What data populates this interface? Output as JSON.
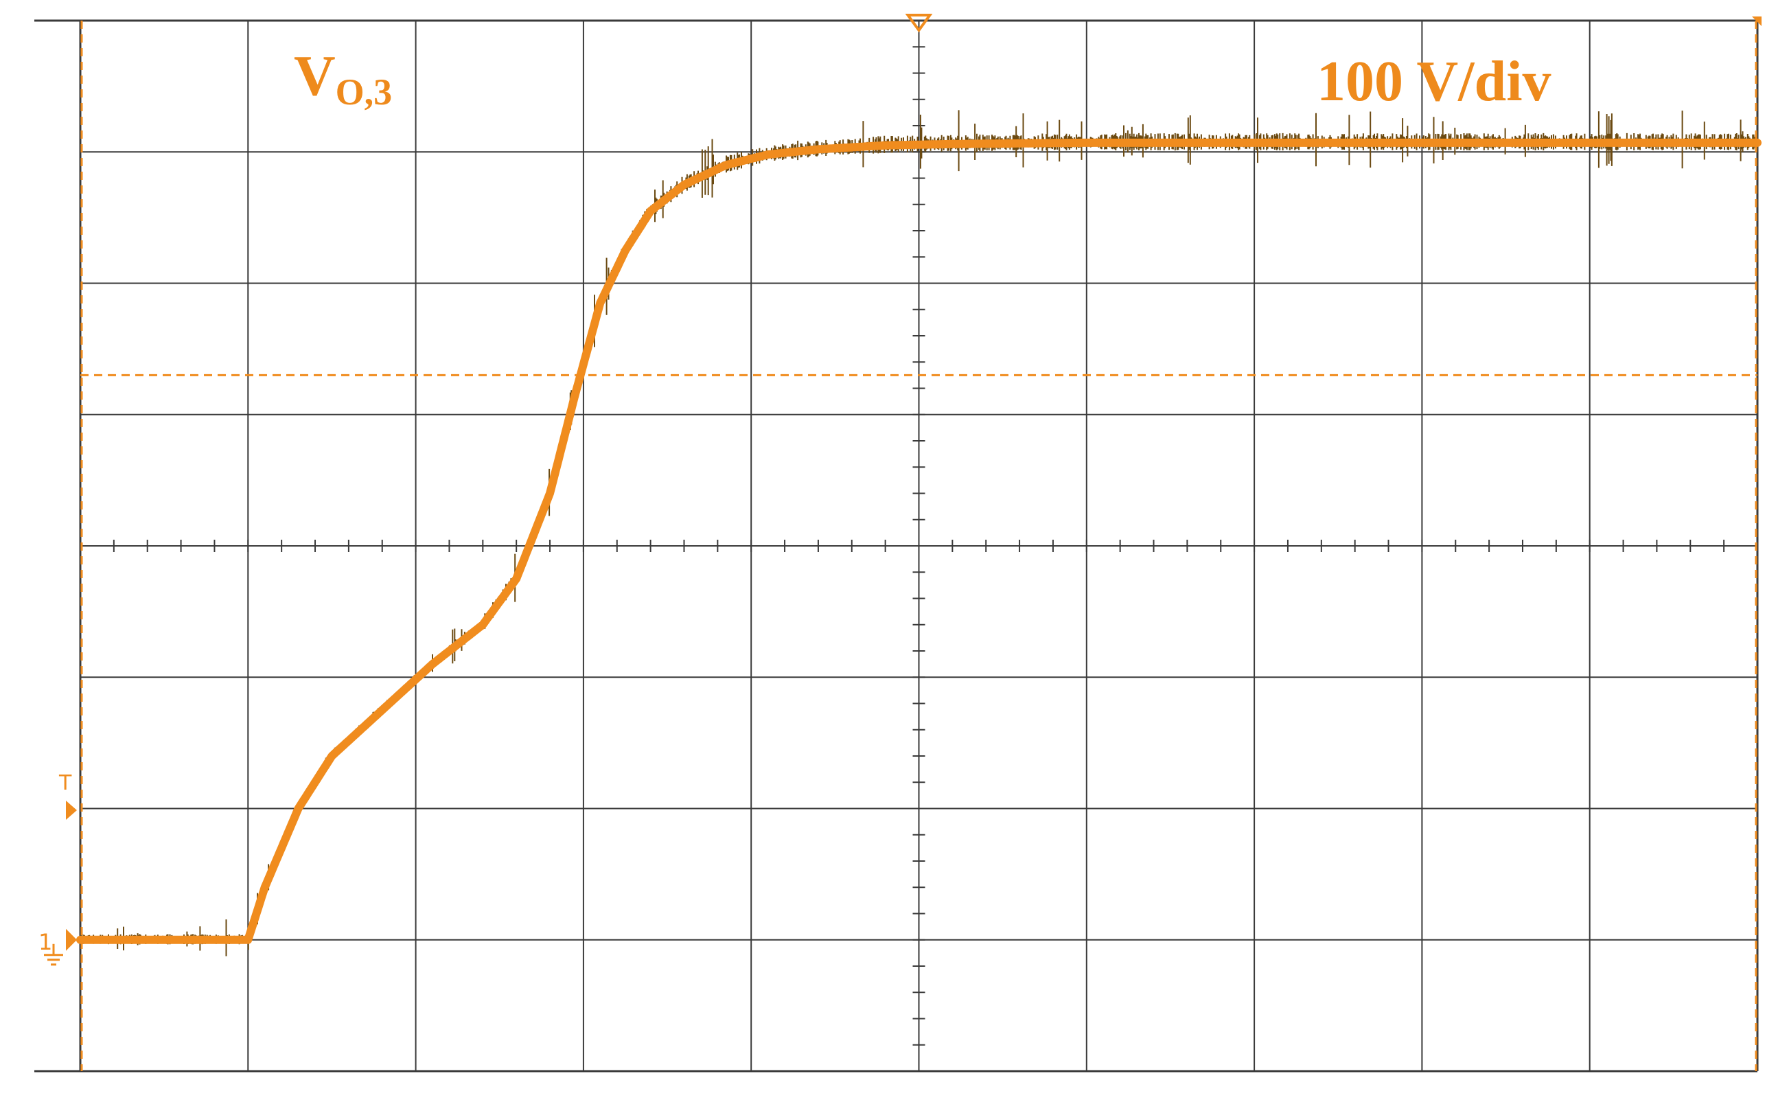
{
  "chart_data": {
    "type": "line",
    "title": "",
    "channel_label": {
      "main": "V",
      "sub": "O,3"
    },
    "scale_label": "100 V/div",
    "channel_marker": "1",
    "trigger_marker": "T",
    "grid": {
      "h_divisions": 10,
      "v_divisions": 8,
      "minor_ticks_per_division": 5,
      "visible": true
    },
    "xlabel": "",
    "ylabel": "",
    "xlim": [
      0,
      10
    ],
    "ylim": [
      -1,
      7
    ],
    "trigger_level_div": 4.3,
    "trigger_time_div": 5.0,
    "series": [
      {
        "color": "#F08C1E",
        "noise_color": "#6B4A12",
        "x": [
          0.0,
          1.0,
          1.1,
          1.3,
          1.5,
          1.8,
          2.1,
          2.4,
          2.6,
          2.8,
          2.95,
          3.1,
          3.25,
          3.4,
          3.6,
          3.85,
          4.1,
          4.4,
          4.8,
          5.2,
          6.0,
          7.0,
          8.0,
          9.0,
          10.0
        ],
        "y": [
          0.0,
          0.0,
          0.4,
          1.0,
          1.4,
          1.75,
          2.1,
          2.4,
          2.75,
          3.4,
          4.15,
          4.85,
          5.25,
          5.55,
          5.75,
          5.9,
          5.98,
          6.02,
          6.05,
          6.06,
          6.07,
          6.07,
          6.07,
          6.07,
          6.07
        ]
      }
    ]
  }
}
